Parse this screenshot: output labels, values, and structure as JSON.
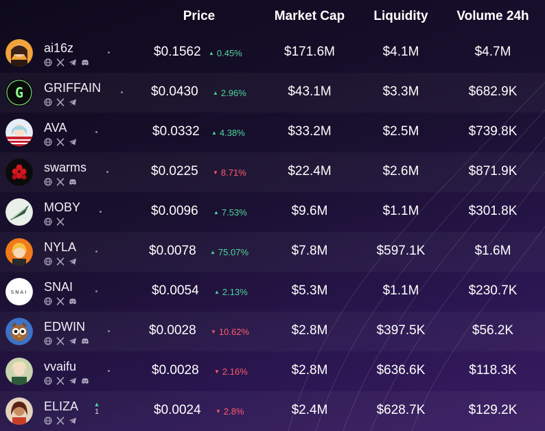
{
  "header": {
    "price": "Price",
    "market_cap": "Market Cap",
    "liquidity": "Liquidity",
    "volume": "Volume 24h"
  },
  "colors": {
    "up": "#4ed59a",
    "down": "#ff5a6e"
  },
  "rows": [
    {
      "name": "ai16z",
      "socials": [
        "globe-icon",
        "x-icon",
        "telegram-icon",
        "discord-icon"
      ],
      "price": "$0.1562",
      "change": "0.45%",
      "dir": "up",
      "market_cap": "$171.6M",
      "liquidity": "$4.1M",
      "volume": "$4.7M"
    },
    {
      "name": "GRIFFAIN",
      "socials": [
        "globe-icon",
        "x-icon",
        "telegram-icon"
      ],
      "price": "$0.0430",
      "change": "2.96%",
      "dir": "up",
      "market_cap": "$43.1M",
      "liquidity": "$3.3M",
      "volume": "$682.9K"
    },
    {
      "name": "AVA",
      "socials": [
        "globe-icon",
        "x-icon",
        "telegram-icon"
      ],
      "price": "$0.0332",
      "change": "4.38%",
      "dir": "up",
      "market_cap": "$33.2M",
      "liquidity": "$2.5M",
      "volume": "$739.8K"
    },
    {
      "name": "swarms",
      "socials": [
        "globe-icon",
        "x-icon",
        "discord-icon"
      ],
      "price": "$0.0225",
      "change": "8.71%",
      "dir": "down",
      "market_cap": "$22.4M",
      "liquidity": "$2.6M",
      "volume": "$871.9K"
    },
    {
      "name": "MOBY",
      "socials": [
        "globe-icon",
        "x-icon"
      ],
      "price": "$0.0096",
      "change": "7.53%",
      "dir": "up",
      "market_cap": "$9.6M",
      "liquidity": "$1.1M",
      "volume": "$301.8K"
    },
    {
      "name": "NYLA",
      "socials": [
        "globe-icon",
        "x-icon",
        "telegram-icon"
      ],
      "price": "$0.0078",
      "change": "75.07%",
      "dir": "up",
      "market_cap": "$7.8M",
      "liquidity": "$597.1K",
      "volume": "$1.6M"
    },
    {
      "name": "SNAI",
      "socials": [
        "globe-icon",
        "x-icon",
        "discord-icon"
      ],
      "price": "$0.0054",
      "change": "2.13%",
      "dir": "up",
      "market_cap": "$5.3M",
      "liquidity": "$1.1M",
      "volume": "$230.7K"
    },
    {
      "name": "EDWIN",
      "socials": [
        "globe-icon",
        "x-icon",
        "telegram-icon",
        "discord-icon"
      ],
      "price": "$0.0028",
      "change": "10.62%",
      "dir": "down",
      "market_cap": "$2.8M",
      "liquidity": "$397.5K",
      "volume": "$56.2K"
    },
    {
      "name": "vvaifu",
      "socials": [
        "globe-icon",
        "x-icon",
        "telegram-icon",
        "discord-icon"
      ],
      "price": "$0.0028",
      "change": "2.16%",
      "dir": "down",
      "market_cap": "$2.8M",
      "liquidity": "$636.6K",
      "volume": "$118.3K"
    },
    {
      "name": "ELIZA",
      "socials": [
        "globe-icon",
        "x-icon",
        "telegram-icon"
      ],
      "price": "$0.0024",
      "change": "2.8%",
      "dir": "down",
      "market_cap": "$2.4M",
      "liquidity": "$628.7K",
      "volume": "$129.2K",
      "rank_change": "1"
    }
  ]
}
